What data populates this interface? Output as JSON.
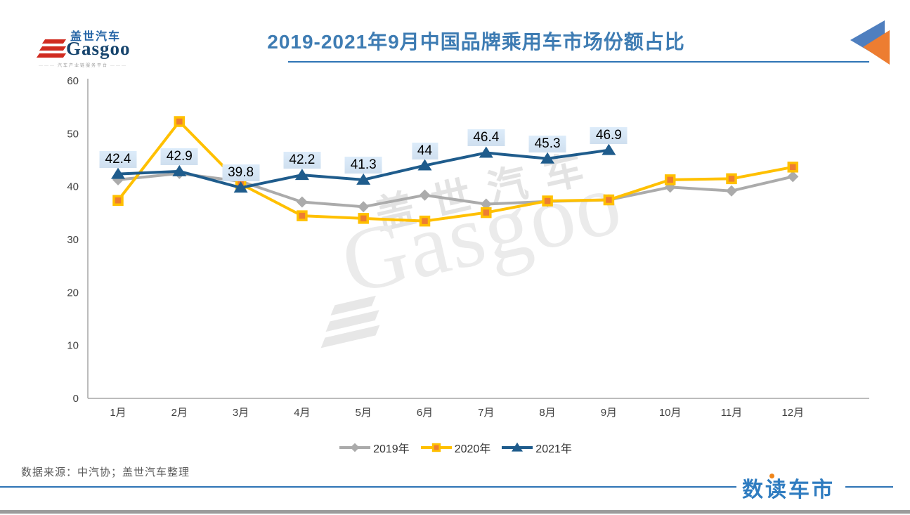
{
  "header": {
    "logo": {
      "cn": "盖世汽车",
      "en": "Gasgoo",
      "tagline": "汽车产业链服务平台"
    }
  },
  "chart_data": {
    "type": "line",
    "title": "2019-2021年9月中国品牌乘用车市场份额占比",
    "xlabel": "",
    "ylabel": "",
    "ylim": [
      0,
      60
    ],
    "y_ticks": [
      0,
      10,
      20,
      30,
      40,
      50,
      60
    ],
    "grid": "off",
    "legend_position": "bottom",
    "categories": [
      "1月",
      "2月",
      "3月",
      "4月",
      "5月",
      "6月",
      "7月",
      "8月",
      "9月",
      "10月",
      "11月",
      "12月"
    ],
    "series": [
      {
        "name": "2019年",
        "color": "#ababab",
        "marker": "diamond",
        "values": [
          41.3,
          42.5,
          41.0,
          37.1,
          36.2,
          38.4,
          36.7,
          37.2,
          37.5,
          39.9,
          39.2,
          41.9
        ]
      },
      {
        "name": "2020年",
        "color": "#ffc000",
        "marker": "square",
        "marker_fill": "#ed7d31",
        "marker_stroke": "#ffc000",
        "values": [
          37.4,
          52.3,
          40.5,
          34.5,
          34.0,
          33.5,
          35.1,
          37.3,
          37.5,
          41.3,
          41.5,
          43.7
        ]
      },
      {
        "name": "2021年",
        "color": "#1f5c8c",
        "marker": "triangle",
        "values": [
          42.4,
          42.9,
          39.8,
          42.2,
          41.3,
          44,
          46.4,
          45.3,
          46.9,
          null,
          null,
          null
        ],
        "labels": [
          "42.4",
          "42.9",
          "39.8",
          "42.2",
          "41.3",
          "44",
          "46.4",
          "45.3",
          "46.9"
        ],
        "label_bg": "#d3e2f3"
      }
    ]
  },
  "watermark": {
    "cn": "盖世汽车",
    "en": "Gasgoo"
  },
  "footer": {
    "source": "数据来源：中汽协；盖世汽车整理",
    "brand": "数读车市"
  },
  "colors": {
    "title": "#3e7cb3",
    "title_rule": "#2e74b5",
    "axis": "#a6a6a6",
    "corner_blue": "#4f7fbf",
    "corner_orange": "#ed7d31"
  }
}
